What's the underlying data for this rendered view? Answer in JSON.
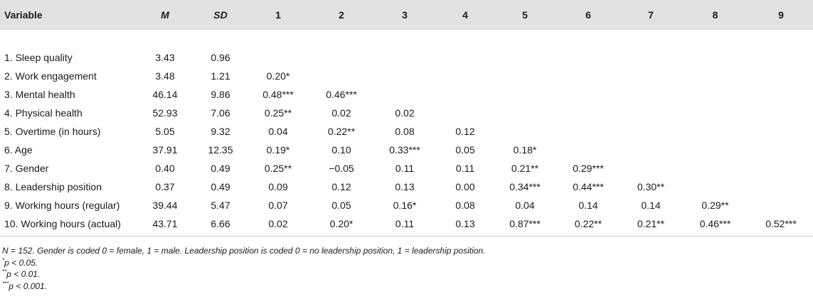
{
  "table": {
    "headers": [
      "Variable",
      "M",
      "SD",
      "1",
      "2",
      "3",
      "4",
      "5",
      "6",
      "7",
      "8",
      "9"
    ],
    "rows": [
      {
        "variable": "1. Sleep quality",
        "M": "3.43",
        "SD": "0.96",
        "corr": [
          "",
          "",
          "",
          "",
          "",
          "",
          "",
          "",
          ""
        ]
      },
      {
        "variable": "2. Work engagement",
        "M": "3.48",
        "SD": "1.21",
        "corr": [
          "0.20*",
          "",
          "",
          "",
          "",
          "",
          "",
          "",
          ""
        ]
      },
      {
        "variable": "3. Mental health",
        "M": "46.14",
        "SD": "9.86",
        "corr": [
          "0.48***",
          "0.46***",
          "",
          "",
          "",
          "",
          "",
          "",
          ""
        ]
      },
      {
        "variable": "4. Physical health",
        "M": "52.93",
        "SD": "7.06",
        "corr": [
          "0.25**",
          "0.02",
          "0.02",
          "",
          "",
          "",
          "",
          "",
          ""
        ]
      },
      {
        "variable": "5. Overtime (in hours)",
        "M": "5.05",
        "SD": "9.32",
        "corr": [
          "0.04",
          "0.22**",
          "0.08",
          "0.12",
          "",
          "",
          "",
          "",
          ""
        ]
      },
      {
        "variable": "6. Age",
        "M": "37.91",
        "SD": "12.35",
        "corr": [
          "0.19*",
          "0.10",
          "0.33***",
          "0.05",
          "0.18*",
          "",
          "",
          "",
          ""
        ]
      },
      {
        "variable": "7. Gender",
        "M": "0.40",
        "SD": "0.49",
        "corr": [
          "0.25**",
          "−0.05",
          "0.11",
          "0.11",
          "0.21**",
          "0.29***",
          "",
          "",
          ""
        ]
      },
      {
        "variable": "8. Leadership position",
        "M": "0.37",
        "SD": "0.49",
        "corr": [
          "0.09",
          "0.12",
          "0.13",
          "0.00",
          "0.34***",
          "0.44***",
          "0.30**",
          "",
          ""
        ]
      },
      {
        "variable": "9. Working hours (regular)",
        "M": "39.44",
        "SD": "5.47",
        "corr": [
          "0.07",
          "0.05",
          "0.16*",
          "0.08",
          "0.04",
          "0.14",
          "0.14",
          "0.29**",
          ""
        ]
      },
      {
        "variable": "10. Working hours (actual)",
        "M": "43.71",
        "SD": "6.66",
        "corr": [
          "0.02",
          "0.20*",
          "0.11",
          "0.13",
          "0.87***",
          "0.22**",
          "0.21**",
          "0.46***",
          "0.52***"
        ]
      }
    ]
  },
  "notes": {
    "main": "N = 152. Gender is coded 0 = female, 1 = male. Leadership position is coded 0 = no leadership position, 1 = leadership position.",
    "p05": {
      "stars": "*",
      "text": "p < 0.05."
    },
    "p01": {
      "stars": "**",
      "text": "p < 0.01."
    },
    "p001": {
      "stars": "***",
      "text": "p < 0.001."
    }
  }
}
